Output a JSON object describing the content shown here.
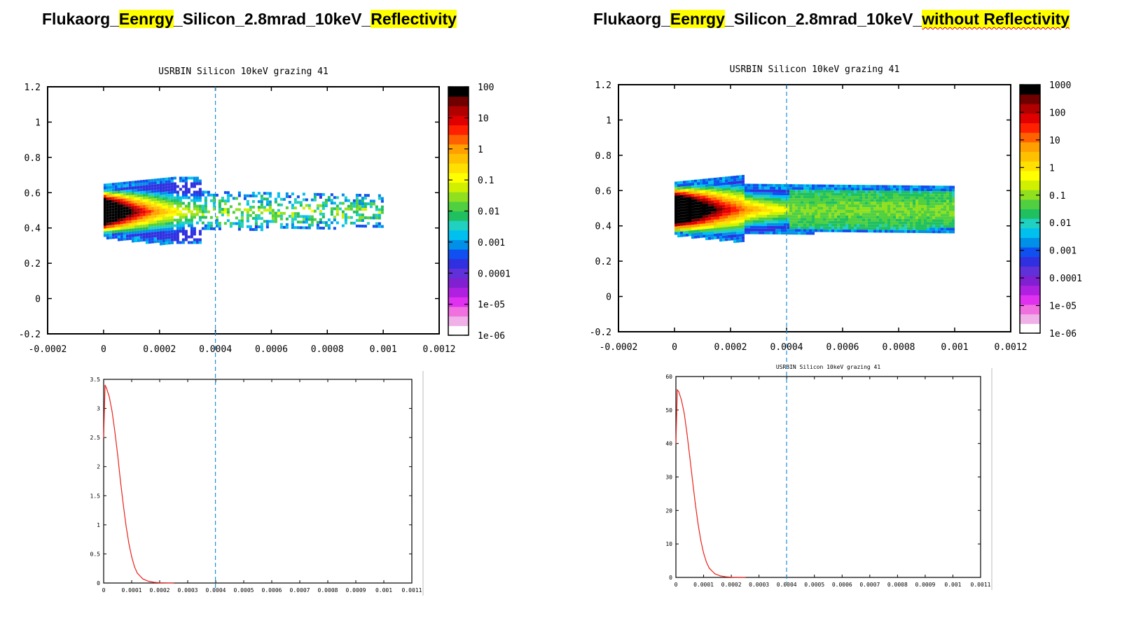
{
  "titles": {
    "left": [
      {
        "text": "Flukaorg_",
        "highlight": false
      },
      {
        "text": "Eenrgy",
        "highlight": true
      },
      {
        "text": "_Silicon_2.8mrad_10keV_",
        "highlight": false
      },
      {
        "text": "Reflectivity",
        "highlight": true
      }
    ],
    "right": [
      {
        "text": "Flukaorg_",
        "highlight": false
      },
      {
        "text": "Eenrgy",
        "highlight": true
      },
      {
        "text": "_Silicon_2.8mrad_10keV_",
        "highlight": false
      },
      {
        "text": "without Reflectivity",
        "highlight": true,
        "spellcheck": true
      }
    ]
  },
  "colors": {
    "highlight": "#ffff00",
    "guide_line": "#1f8fd0",
    "curve": "#e8231c",
    "colormap": [
      "#ffffff",
      "#f0b0e8",
      "#f070e0",
      "#e030f0",
      "#b020e0",
      "#8020d0",
      "#6030d8",
      "#3030e0",
      "#1050f0",
      "#0090e8",
      "#00c0f0",
      "#20d0c0",
      "#20c060",
      "#50d040",
      "#90e020",
      "#d0f000",
      "#ffff00",
      "#ffe000",
      "#ffc000",
      "#ffa000",
      "#ff6000",
      "#ff2000",
      "#e00000",
      "#b00000",
      "#700000",
      "#000000"
    ]
  },
  "chart_data": [
    {
      "id": "top-left",
      "type": "heatmap",
      "title": "USRBIN Silicon 10keV grazing 41",
      "xlim": [
        -0.0002,
        0.0012
      ],
      "ylim": [
        -0.2,
        1.2
      ],
      "xticks": [
        "-0.0002",
        "0",
        "0.0002",
        "0.0004",
        "0.0006",
        "0.0008",
        "0.001",
        "0.0012"
      ],
      "yticks": [
        "1.2",
        "1",
        "0.8",
        "0.6",
        "0.4",
        "0.2",
        "0",
        "-0.2"
      ],
      "colorbar": {
        "scale": "log",
        "labels": [
          "100",
          "10",
          "1",
          "0.1",
          "0.01",
          "0.001",
          "0.0001",
          "1e-05",
          "1e-06"
        ],
        "max": 100
      },
      "peak": {
        "x": 0.0,
        "y": 0.5
      },
      "data_extent_x": [
        0.0,
        0.001
      ],
      "guide_x": 0.0004
    },
    {
      "id": "top-right",
      "type": "heatmap",
      "title": "USRBIN Silicon 10keV grazing 41",
      "xlim": [
        -0.0002,
        0.0012
      ],
      "ylim": [
        -0.2,
        1.2
      ],
      "xticks": [
        "-0.0002",
        "0",
        "0.0002",
        "0.0004",
        "0.0006",
        "0.0008",
        "0.001",
        "0.0012"
      ],
      "yticks": [
        "1.2",
        "1",
        "0.8",
        "0.6",
        "0.4",
        "0.2",
        "0",
        "-0.2"
      ],
      "colorbar": {
        "scale": "log",
        "labels": [
          "1000",
          "100",
          "10",
          "1",
          "0.1",
          "0.01",
          "0.001",
          "0.0001",
          "1e-05",
          "1e-06"
        ],
        "max": 1000
      },
      "peak": {
        "x": 0.0,
        "y": 0.5
      },
      "data_extent_x": [
        0.0,
        0.001
      ],
      "guide_x": 0.0004
    },
    {
      "id": "bottom-left",
      "type": "line",
      "title": "",
      "xlim": [
        0,
        0.0011
      ],
      "ylim": [
        0,
        3.5
      ],
      "xticks": [
        "0",
        "0.0001",
        "0.0002",
        "0.0003",
        "0.0004",
        "0.0005",
        "0.0006",
        "0.0007",
        "0.0008",
        "0.0009",
        "0.001",
        "0.0011"
      ],
      "yticks": [
        "3.5",
        "3",
        "2.5",
        "2",
        "1.5",
        "1",
        "0.5",
        "0"
      ],
      "x": [
        0,
        5e-06,
        1e-05,
        2e-05,
        3e-05,
        4e-05,
        5e-05,
        6e-05,
        7e-05,
        8e-05,
        9e-05,
        0.0001,
        0.00011,
        0.00012,
        0.00014,
        0.00016,
        0.00018,
        0.0002,
        0.00022,
        0.00025
      ],
      "y": [
        2.5,
        3.4,
        3.35,
        3.2,
        2.95,
        2.6,
        2.2,
        1.75,
        1.35,
        0.98,
        0.68,
        0.45,
        0.28,
        0.17,
        0.07,
        0.03,
        0.012,
        0.005,
        0.002,
        0.0
      ],
      "guide_x": 0.0004
    },
    {
      "id": "bottom-right",
      "type": "line",
      "title": "USRBIN Silicon 10keV grazing 41",
      "xlim": [
        0,
        0.0011
      ],
      "ylim": [
        0,
        60
      ],
      "xticks": [
        "0",
        "0.0001",
        "0.0002",
        "0.0003",
        "0.0004",
        "0.0005",
        "0.0006",
        "0.0007",
        "0.0008",
        "0.0009",
        "0.001",
        "0.0011"
      ],
      "yticks": [
        "60",
        "50",
        "40",
        "30",
        "20",
        "10",
        "0"
      ],
      "x": [
        0,
        5e-06,
        1e-05,
        2e-05,
        3e-05,
        4e-05,
        5e-05,
        6e-05,
        7e-05,
        8e-05,
        9e-05,
        0.0001,
        0.00011,
        0.00012,
        0.00014,
        0.00016,
        0.00018,
        0.0002,
        0.00022,
        0.00025
      ],
      "y": [
        40,
        56,
        55.5,
        53,
        49,
        43,
        36,
        29,
        22,
        16,
        11,
        7.3,
        4.6,
        2.8,
        1.1,
        0.45,
        0.18,
        0.07,
        0.02,
        0.0
      ],
      "guide_x": 0.0004
    }
  ]
}
